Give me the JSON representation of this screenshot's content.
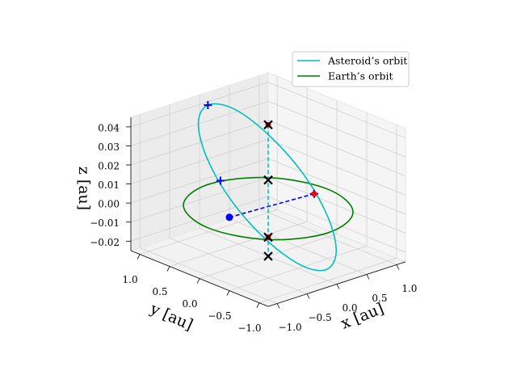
{
  "chart_data": {
    "type": "line3d",
    "xlabel": "x [au]",
    "ylabel": "y [au]",
    "zlabel": "z [au]",
    "xlim": [
      -1.15,
      1.15
    ],
    "ylim": [
      -1.15,
      1.15
    ],
    "zlim": [
      -0.025,
      0.045
    ],
    "xticks": [
      {
        "value": -1,
        "label": "−1.0"
      },
      {
        "value": -0.5,
        "label": "−0.5"
      },
      {
        "value": 0,
        "label": "0.0"
      },
      {
        "value": 0.5,
        "label": "0.5"
      },
      {
        "value": 1,
        "label": "1.0"
      }
    ],
    "yticks": [
      {
        "value": -1,
        "label": "−1.0"
      },
      {
        "value": -0.5,
        "label": "−0.5"
      },
      {
        "value": 0,
        "label": "0.0"
      },
      {
        "value": 0.5,
        "label": "0.5"
      },
      {
        "value": 1,
        "label": "1.0"
      }
    ],
    "zticks": [
      {
        "value": -0.02,
        "label": "−0.02"
      },
      {
        "value": -0.01,
        "label": "−0.01"
      },
      {
        "value": 0,
        "label": "0.00"
      },
      0.01,
      0.02,
      0.03,
      0.04
    ],
    "grid": true,
    "legend": "upper right",
    "series": [
      {
        "name": "Asteroid’s orbit",
        "color": "#00bfbf",
        "x": [
          0.22,
          0.25,
          0.24,
          0.17,
          0.07,
          -0.04,
          -0.12,
          -0.16,
          -0.15,
          -0.08,
          0.02,
          0.13
        ],
        "y": [
          0.81,
          0.27,
          -0.33,
          -0.82,
          -1.07,
          -1.02,
          -0.69,
          -0.15,
          0.45,
          0.94,
          1.19,
          1.14
        ],
        "z": [
          0.04,
          0.0335,
          0.0207,
          0.005,
          -0.0093,
          -0.0185,
          -0.02,
          -0.0135,
          -0.0007,
          0.015,
          0.0293,
          0.0385
        ]
      },
      {
        "name": "Earth’s orbit",
        "color": "#008000",
        "x": [
          1,
          0.92,
          0.71,
          0.38,
          0,
          -0.38,
          -0.71,
          -0.92,
          -1,
          -0.92,
          -0.71,
          -0.38,
          0,
          0.38,
          0.71,
          0.92
        ],
        "y": [
          0,
          0.38,
          0.71,
          0.92,
          1,
          0.92,
          0.71,
          0.38,
          0,
          -0.38,
          -0.71,
          -0.92,
          -1,
          -0.92,
          -0.71,
          -0.38
        ],
        "z": [
          0,
          0,
          0,
          0,
          0,
          0,
          0,
          0,
          0,
          0,
          0,
          0,
          0,
          0,
          0,
          0
        ]
      }
    ],
    "dashed_lines": [
      {
        "color": "#0000ff",
        "x": [
          -0.56,
          0.2
        ],
        "y": [
          0.09,
          -0.57
        ],
        "z": [
          0,
          0.013
        ]
      },
      {
        "color": "#00bfbf",
        "x": [
          0,
          0
        ],
        "y": [
          0,
          0
        ],
        "z": [
          0.044,
          -0.025
        ]
      }
    ],
    "markers": [
      {
        "marker": "o",
        "color": "#0000ff",
        "x": [
          -0.56
        ],
        "y": [
          0.09
        ],
        "z": [
          0
        ]
      },
      {
        "marker": "+",
        "color": "#0000ff",
        "x": [
          0.13,
          -0.11,
          0.2
        ],
        "y": [
          1.14,
          0.69,
          -0.57
        ],
        "z": [
          0.0385,
          0.007,
          0.013
        ]
      },
      {
        "marker": "o",
        "color": "#ff0000",
        "x": [
          0,
          0.2,
          0
        ],
        "y": [
          0,
          -0.57,
          0
        ],
        "z": [
          0.044,
          0.013,
          -0.015
        ]
      },
      {
        "marker": "x",
        "color": "#000000",
        "x": [
          0,
          0,
          0,
          0
        ],
        "y": [
          0,
          0,
          0,
          0
        ],
        "z": [
          0.044,
          0.015,
          -0.015,
          -0.025
        ]
      }
    ]
  }
}
